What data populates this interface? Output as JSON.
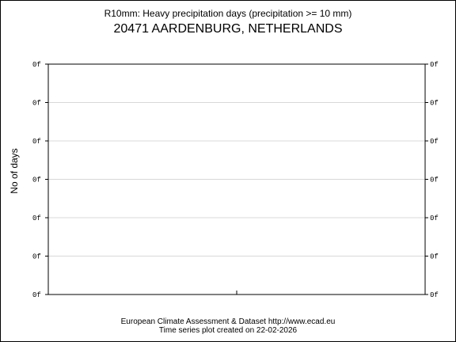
{
  "chart_data": {
    "type": "line",
    "title": "R10mm: Heavy precipitation days (precipitation >= 10 mm)",
    "subtitle": "20471 AARDENBURG, NETHERLANDS",
    "ylabel": "No of days",
    "xlabel": "",
    "y_tick_labels": [
      "0f",
      "0f",
      "0f",
      "0f",
      "0f",
      "0f",
      "0f"
    ],
    "x_tick_labels": [],
    "series": [],
    "grid": true,
    "grid_color": "#d8d8d8"
  },
  "footer": {
    "line1": "European Climate Assessment & Dataset  http://www.ecad.eu",
    "line2": "Time series plot created on 22-02-2026"
  }
}
